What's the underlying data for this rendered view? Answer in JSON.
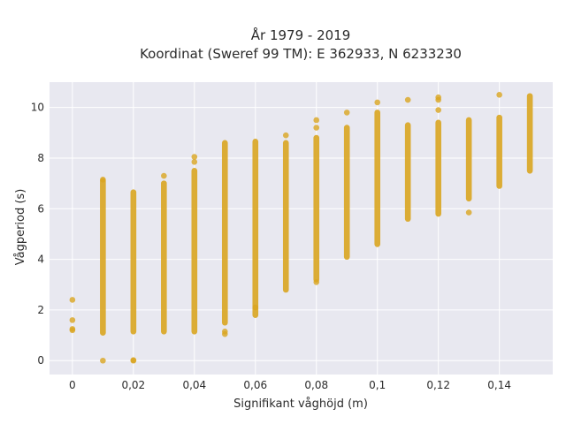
{
  "chart_data": {
    "type": "scatter",
    "title_line1": "År 1979 - 2019",
    "title_line2": "Koordinat (Sweref 99 TM): E 362933, N 6233230",
    "xlabel": "Signifikant våghöjd (m)",
    "ylabel": "Vågperiod (s)",
    "xlim": [
      -0.0075,
      0.1575
    ],
    "ylim": [
      -0.55,
      11
    ],
    "x_ticks": [
      0,
      0.02,
      0.04,
      0.06,
      0.08,
      0.1,
      0.12,
      0.14
    ],
    "x_tick_labels": [
      "0",
      "0,02",
      "0,04",
      "0,06",
      "0,08",
      "0,1",
      "0,12",
      "0,14"
    ],
    "y_ticks": [
      0,
      2,
      4,
      6,
      8,
      10
    ],
    "y_tick_labels": [
      "0",
      "2",
      "4",
      "6",
      "8",
      "10"
    ],
    "grid": true,
    "legend": "none",
    "colors": {
      "marker": "#d9a520",
      "plot_bg": "#e8e8f0",
      "grid": "#ffffff"
    },
    "series": [
      {
        "columns": [
          {
            "x": 0.0,
            "band": null,
            "points": [
              1.2,
              1.25,
              1.6,
              2.4
            ]
          },
          {
            "x": 0.01,
            "band": [
              1.1,
              7.1
            ],
            "points": [
              0.0,
              7.15
            ]
          },
          {
            "x": 0.02,
            "band": [
              1.15,
              6.65
            ],
            "points": [
              0.0,
              0.02
            ]
          },
          {
            "x": 0.03,
            "band": [
              1.15,
              7.0
            ],
            "points": [
              7.3
            ]
          },
          {
            "x": 0.04,
            "band": [
              1.15,
              7.5
            ],
            "points": [
              7.85,
              8.05
            ]
          },
          {
            "x": 0.05,
            "band": [
              1.5,
              8.6
            ],
            "points": [
              1.05,
              1.15
            ]
          },
          {
            "x": 0.06,
            "band": [
              1.8,
              8.65
            ],
            "points": [
              2.1
            ]
          },
          {
            "x": 0.07,
            "band": [
              2.8,
              8.6
            ],
            "points": [
              8.9
            ]
          },
          {
            "x": 0.08,
            "band": [
              3.2,
              8.8
            ],
            "points": [
              3.1,
              9.2,
              9.5
            ]
          },
          {
            "x": 0.09,
            "band": [
              4.1,
              9.2
            ],
            "points": [
              9.8
            ]
          },
          {
            "x": 0.1,
            "band": [
              4.6,
              9.8
            ],
            "points": [
              10.2
            ]
          },
          {
            "x": 0.11,
            "band": [
              5.6,
              9.3
            ],
            "points": [
              10.3
            ]
          },
          {
            "x": 0.12,
            "band": [
              5.8,
              9.4
            ],
            "points": [
              9.9,
              10.3,
              10.4
            ]
          },
          {
            "x": 0.13,
            "band": [
              6.4,
              9.5
            ],
            "points": [
              5.85
            ]
          },
          {
            "x": 0.14,
            "band": [
              6.9,
              9.6
            ],
            "points": [
              10.5
            ]
          },
          {
            "x": 0.15,
            "band": [
              7.5,
              10.45
            ],
            "points": []
          }
        ]
      }
    ]
  }
}
